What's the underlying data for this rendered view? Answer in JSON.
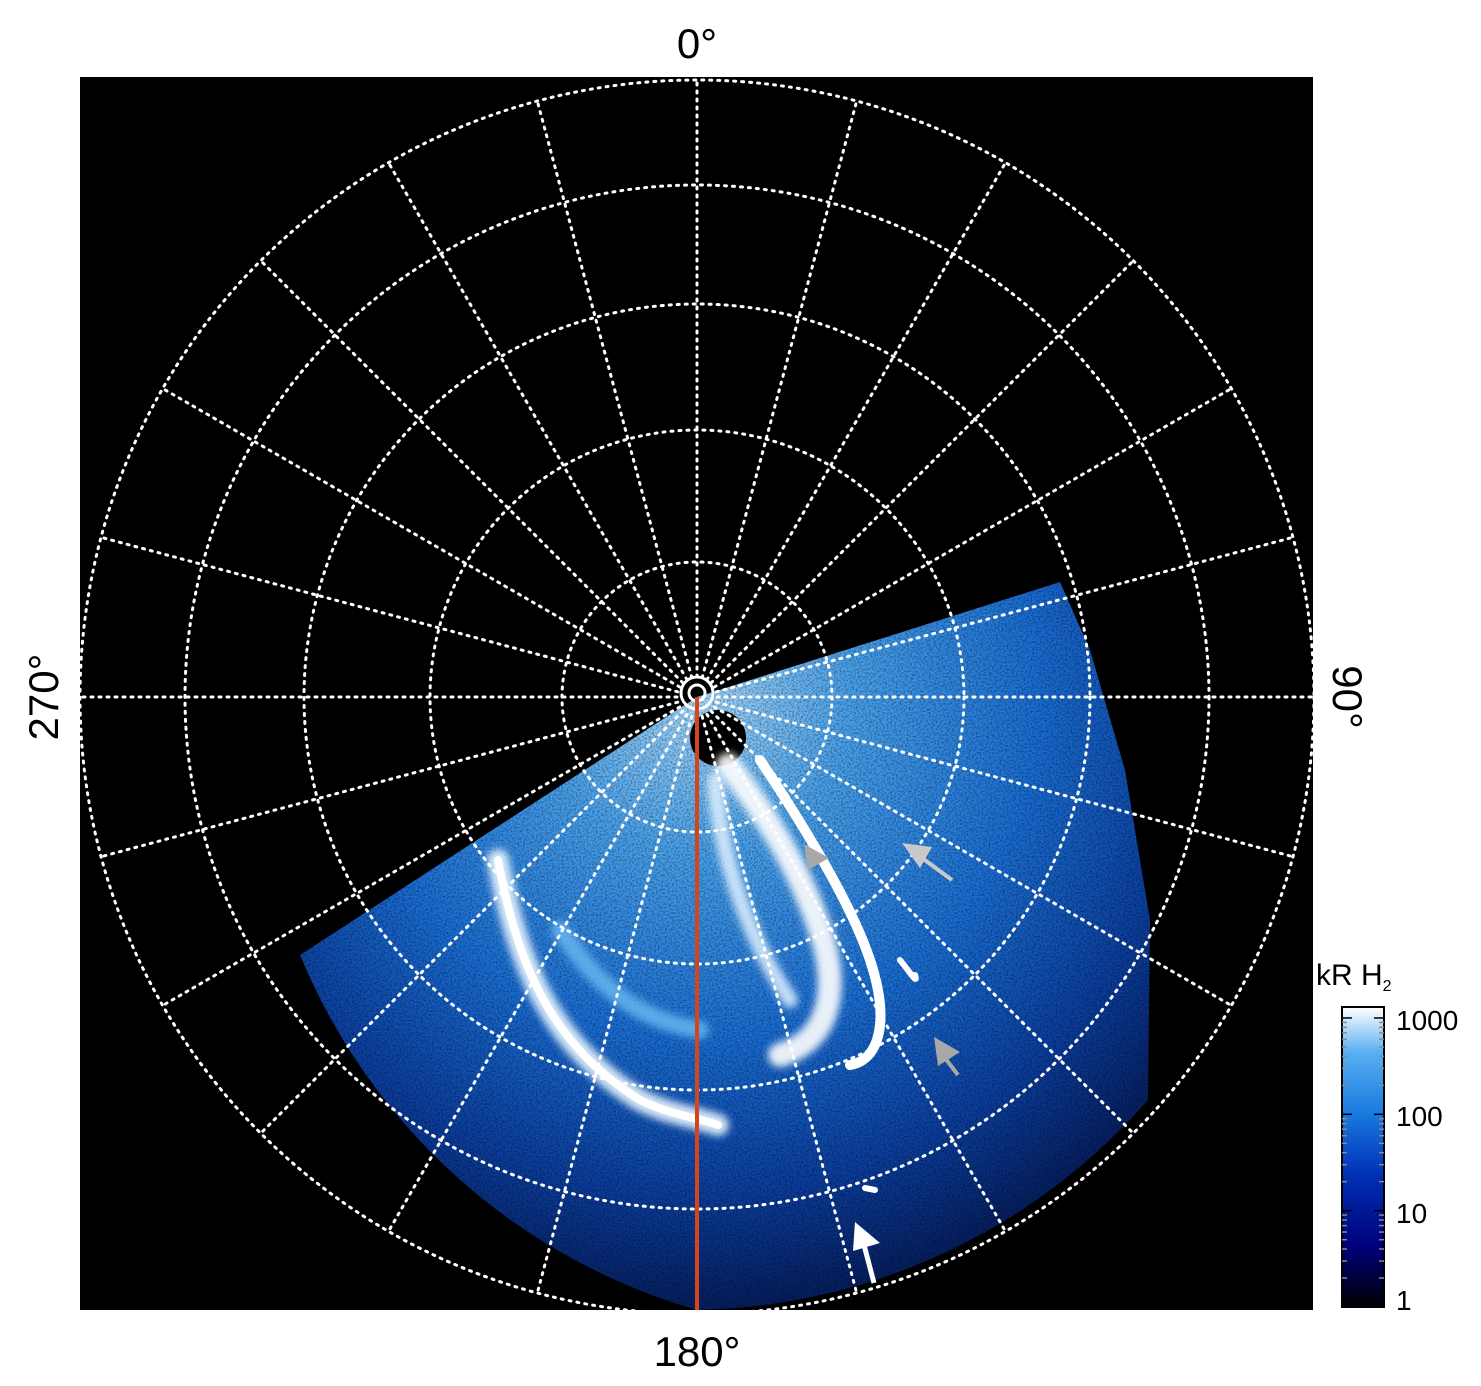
{
  "figure": {
    "labels": {
      "top": "0°",
      "bottom": "180°",
      "left": "270°",
      "right": "90°"
    },
    "colorbar": {
      "title_main": "kR H",
      "title_sub": "2",
      "ticks": [
        "1000",
        "100",
        "10",
        "1"
      ],
      "tick_values": [
        1000,
        100,
        10,
        1
      ],
      "scale": "log"
    },
    "colors": {
      "background": "#000000",
      "grid": "#ffffff",
      "meridian_line": "#d2461e",
      "arrow_gray": "#a8a8a8",
      "arrow_white": "#ffffff",
      "colormap": [
        "#000000",
        "#00007a",
        "#0033b8",
        "#1a7be0",
        "#5ab0f2",
        "#ffffff"
      ]
    },
    "grid": {
      "meridian_spacing_deg": 15,
      "parallel_count": 5,
      "style": "dotted"
    }
  }
}
